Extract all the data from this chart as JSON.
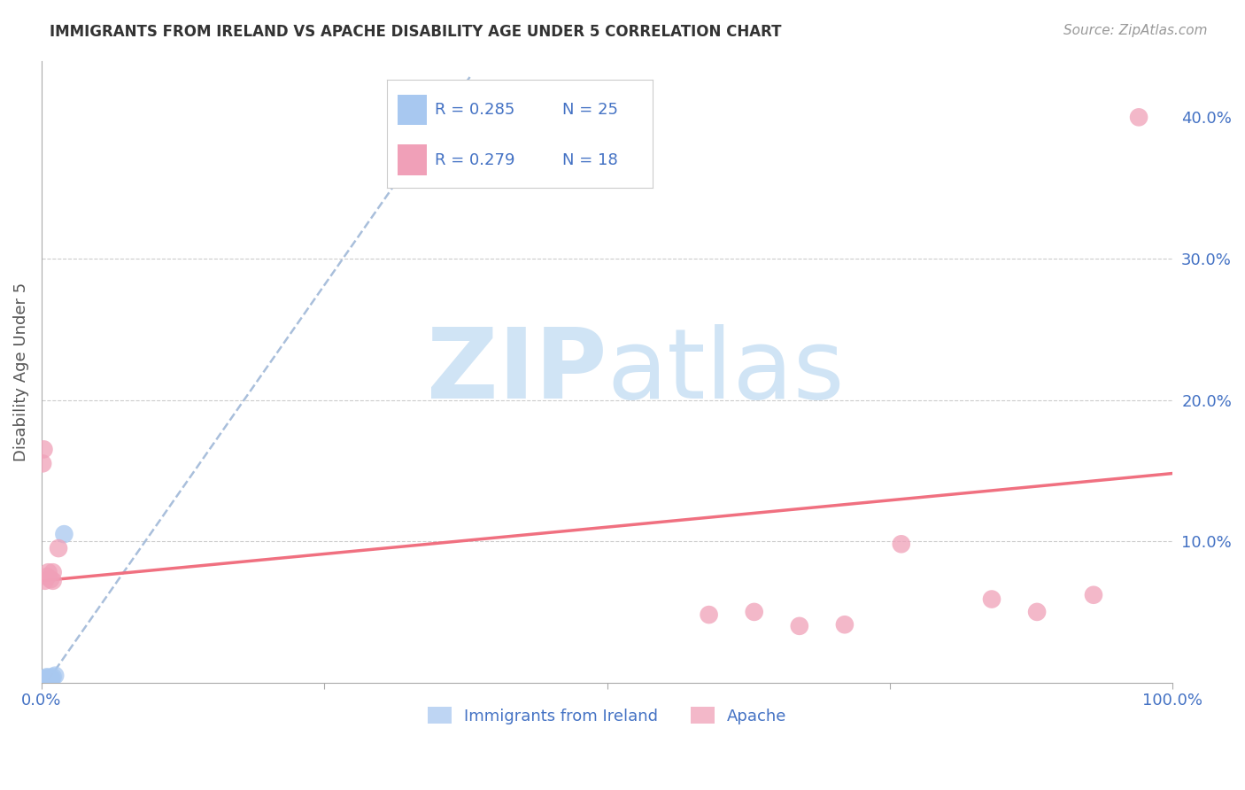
{
  "title": "IMMIGRANTS FROM IRELAND VS APACHE DISABILITY AGE UNDER 5 CORRELATION CHART",
  "source": "Source: ZipAtlas.com",
  "ylabel": "Disability Age Under 5",
  "xlim": [
    0.0,
    1.0
  ],
  "ylim": [
    0.0,
    0.44
  ],
  "blue_color": "#a8c8f0",
  "pink_color": "#f0a0b8",
  "blue_line_color": "#a0b8d8",
  "pink_line_color": "#f07080",
  "legend_text_color": "#4472c4",
  "blue_scatter_x": [
    0.001,
    0.001,
    0.002,
    0.002,
    0.003,
    0.003,
    0.003,
    0.004,
    0.004,
    0.004,
    0.005,
    0.005,
    0.005,
    0.005,
    0.006,
    0.006,
    0.006,
    0.007,
    0.007,
    0.008,
    0.008,
    0.009,
    0.01,
    0.012,
    0.02
  ],
  "blue_scatter_y": [
    0.001,
    0.002,
    0.001,
    0.002,
    0.001,
    0.002,
    0.003,
    0.001,
    0.002,
    0.003,
    0.001,
    0.002,
    0.003,
    0.004,
    0.001,
    0.002,
    0.003,
    0.002,
    0.003,
    0.002,
    0.003,
    0.003,
    0.004,
    0.005,
    0.105
  ],
  "pink_scatter_x": [
    0.001,
    0.002,
    0.003,
    0.005,
    0.006,
    0.008,
    0.01,
    0.01,
    0.015,
    0.59,
    0.63,
    0.67,
    0.71,
    0.76,
    0.84,
    0.88,
    0.93,
    0.97
  ],
  "pink_scatter_y": [
    0.155,
    0.165,
    0.072,
    0.075,
    0.078,
    0.073,
    0.072,
    0.078,
    0.095,
    0.048,
    0.05,
    0.04,
    0.041,
    0.098,
    0.059,
    0.05,
    0.062,
    0.4
  ],
  "blue_line_x0": 0.0,
  "blue_line_x1": 0.38,
  "blue_line_y0": -0.005,
  "blue_line_y1": 0.43,
  "pink_line_x0": 0.0,
  "pink_line_x1": 1.0,
  "pink_line_y0": 0.072,
  "pink_line_y1": 0.148,
  "background_color": "#ffffff",
  "grid_color": "#cccccc",
  "axis_color": "#aaaaaa",
  "tick_label_color": "#4472c4",
  "title_color": "#333333",
  "source_color": "#999999",
  "watermark_color": "#d0e4f5",
  "ylabel_color": "#555555"
}
